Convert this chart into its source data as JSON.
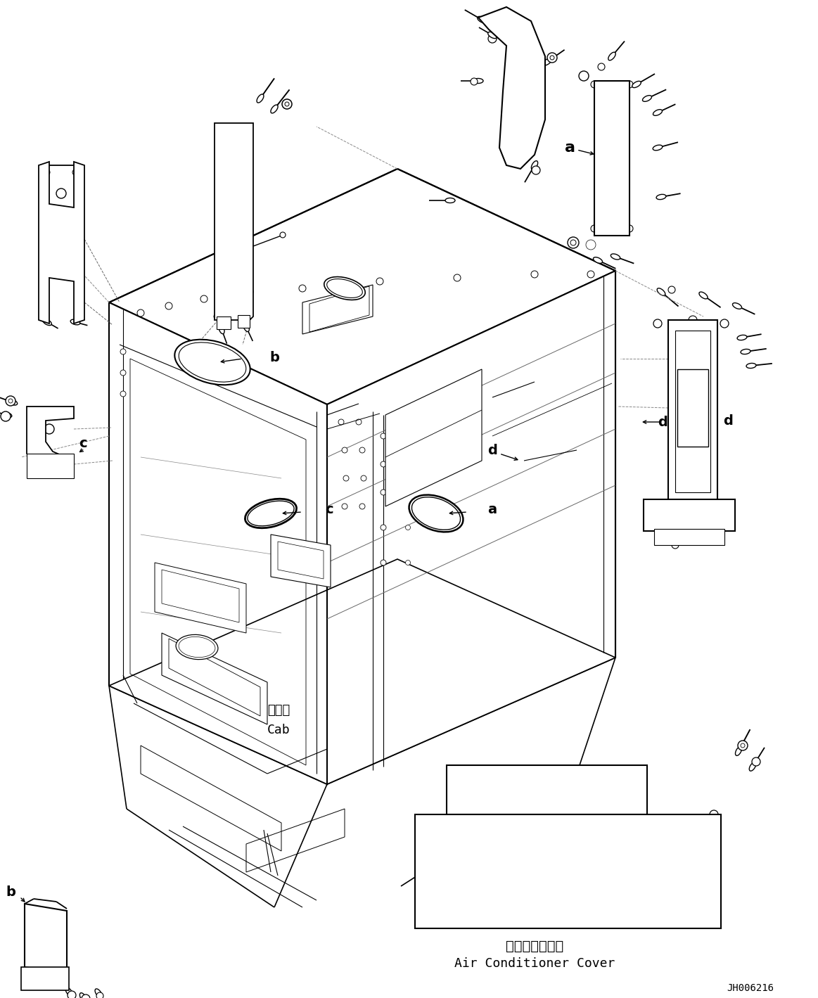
{
  "background_color": "#ffffff",
  "line_color": "#000000",
  "fig_width": 11.63,
  "fig_height": 14.19,
  "dpi": 100,
  "labels": {
    "air_cond_japanese": "エアコンカバー",
    "air_cond_english": "Air Conditioner Cover",
    "cab_japanese": "キャブ",
    "cab_english": "Cab",
    "drawing_number": "JH006216"
  }
}
